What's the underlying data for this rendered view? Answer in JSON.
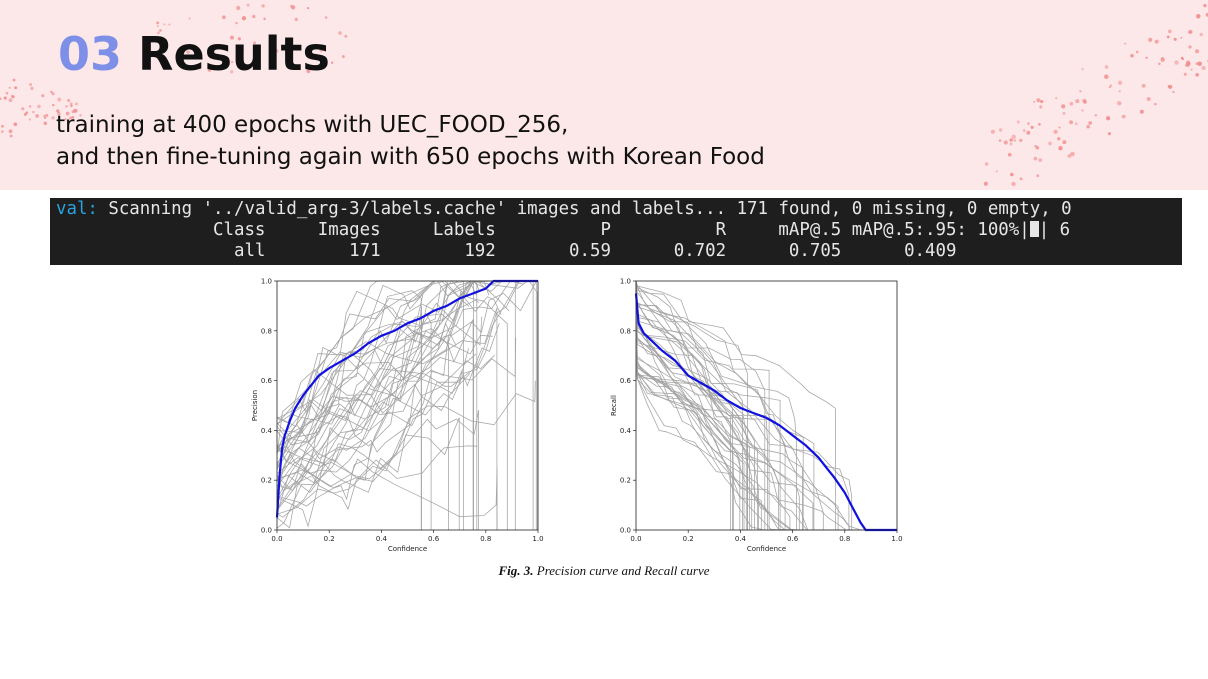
{
  "slide": {
    "section_number": "03",
    "section_title": "Results",
    "line1": "training at 400 epochs with UEC_FOOD_256,",
    "line2": "and then fine-tuning again with 650 epochs with Korean Food",
    "accent_color": "#7d8fe6",
    "band_color": "#fde8e9",
    "dot_color": "#f08a8a"
  },
  "terminal": {
    "val_tag": "val:",
    "line1_text": " Scanning '../valid_arg-3/labels.cache' images and labels... 171 found, 0 missing, 0 empty, 0",
    "line2_pre": "               Class     Images     Labels          P          R     mAP@.5 mAP@.5:.95: 100%|",
    "line2_post": "| 6",
    "line3": "                 all        171        192       0.59      0.702      0.705      0.409"
  },
  "caption": {
    "label": "Fig. 3.",
    "text": " Precision curve and Recall curve"
  },
  "chart_data": [
    {
      "type": "line",
      "title": "",
      "xlabel": "Confidence",
      "ylabel": "Precision",
      "xlim": [
        0,
        1
      ],
      "ylim": [
        0,
        1
      ],
      "xticks": [
        "0.0",
        "0.2",
        "0.4",
        "0.6",
        "0.8",
        "1.0"
      ],
      "yticks": [
        "0.0",
        "0.2",
        "0.4",
        "0.6",
        "0.8",
        "1.0"
      ],
      "series": [
        {
          "color": "#1010e0",
          "x": [
            0,
            0.01,
            0.02,
            0.03,
            0.05,
            0.07,
            0.1,
            0.13,
            0.16,
            0.2,
            0.25,
            0.3,
            0.35,
            0.4,
            0.45,
            0.5,
            0.55,
            0.6,
            0.65,
            0.7,
            0.75,
            0.8,
            0.83,
            0.85,
            0.9,
            1.0
          ],
          "y": [
            0.05,
            0.22,
            0.33,
            0.38,
            0.44,
            0.49,
            0.54,
            0.58,
            0.62,
            0.65,
            0.68,
            0.71,
            0.75,
            0.78,
            0.8,
            0.83,
            0.85,
            0.88,
            0.9,
            0.93,
            0.95,
            0.97,
            1.0,
            1.0,
            1.0,
            1.0
          ]
        }
      ],
      "per_class_curves": 171,
      "per_class_color": "#a0a0a0"
    },
    {
      "type": "line",
      "title": "",
      "xlabel": "Confidence",
      "ylabel": "Recall",
      "xlim": [
        0,
        1
      ],
      "ylim": [
        0,
        1
      ],
      "xticks": [
        "0.0",
        "0.2",
        "0.4",
        "0.6",
        "0.8",
        "1.0"
      ],
      "yticks": [
        "0.0",
        "0.2",
        "0.4",
        "0.6",
        "0.8",
        "1.0"
      ],
      "series": [
        {
          "color": "#1010e0",
          "x": [
            0,
            0.01,
            0.03,
            0.06,
            0.1,
            0.15,
            0.2,
            0.25,
            0.3,
            0.35,
            0.4,
            0.45,
            0.5,
            0.55,
            0.6,
            0.65,
            0.7,
            0.73,
            0.76,
            0.8,
            0.83,
            0.86,
            0.88,
            0.9,
            1.0
          ],
          "y": [
            0.95,
            0.83,
            0.79,
            0.76,
            0.72,
            0.68,
            0.62,
            0.59,
            0.56,
            0.52,
            0.49,
            0.47,
            0.45,
            0.42,
            0.38,
            0.34,
            0.29,
            0.25,
            0.21,
            0.15,
            0.09,
            0.03,
            0.0,
            0.0,
            0.0
          ]
        }
      ],
      "per_class_curves": 171,
      "per_class_color": "#a0a0a0"
    }
  ]
}
